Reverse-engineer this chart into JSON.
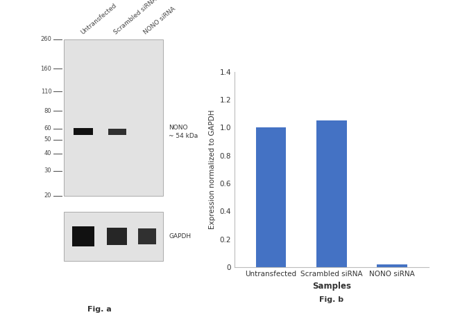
{
  "fig_width": 6.5,
  "fig_height": 4.71,
  "dpi": 100,
  "background_color": "#ffffff",
  "panel_a": {
    "title": "Fig. a",
    "gel_bg_color": "#e2e2e2",
    "gel_border_color": "#aaaaaa",
    "mw_markers": [
      260,
      160,
      110,
      80,
      60,
      50,
      40,
      30,
      20
    ],
    "mw_marker_color": "#444444",
    "sample_labels": [
      "Untransfected",
      "Scrambled siRNA",
      "NONO siRNA"
    ],
    "sample_label_color": "#444444",
    "band_label_nono": "NONO\n~ 54 kDa",
    "band_label_gapdh": "GAPDH",
    "nono_band_color": "#111111",
    "gapdh_band_color": "#111111"
  },
  "panel_b": {
    "title": "Fig. b",
    "categories": [
      "Untransfected",
      "Scrambled siRNA",
      "NONO siRNA"
    ],
    "values": [
      1.0,
      1.05,
      0.02
    ],
    "bar_color": "#4472c4",
    "xlabel": "Samples",
    "ylabel": "Expression normalized to GAPDH",
    "ylim": [
      0,
      1.4
    ],
    "yticks": [
      0,
      0.2,
      0.4,
      0.6,
      0.8,
      1.0,
      1.2,
      1.4
    ],
    "ylabel_fontsize": 7.5,
    "xlabel_fontsize": 8.5,
    "tick_fontsize": 7.5,
    "title_fontsize": 8
  }
}
